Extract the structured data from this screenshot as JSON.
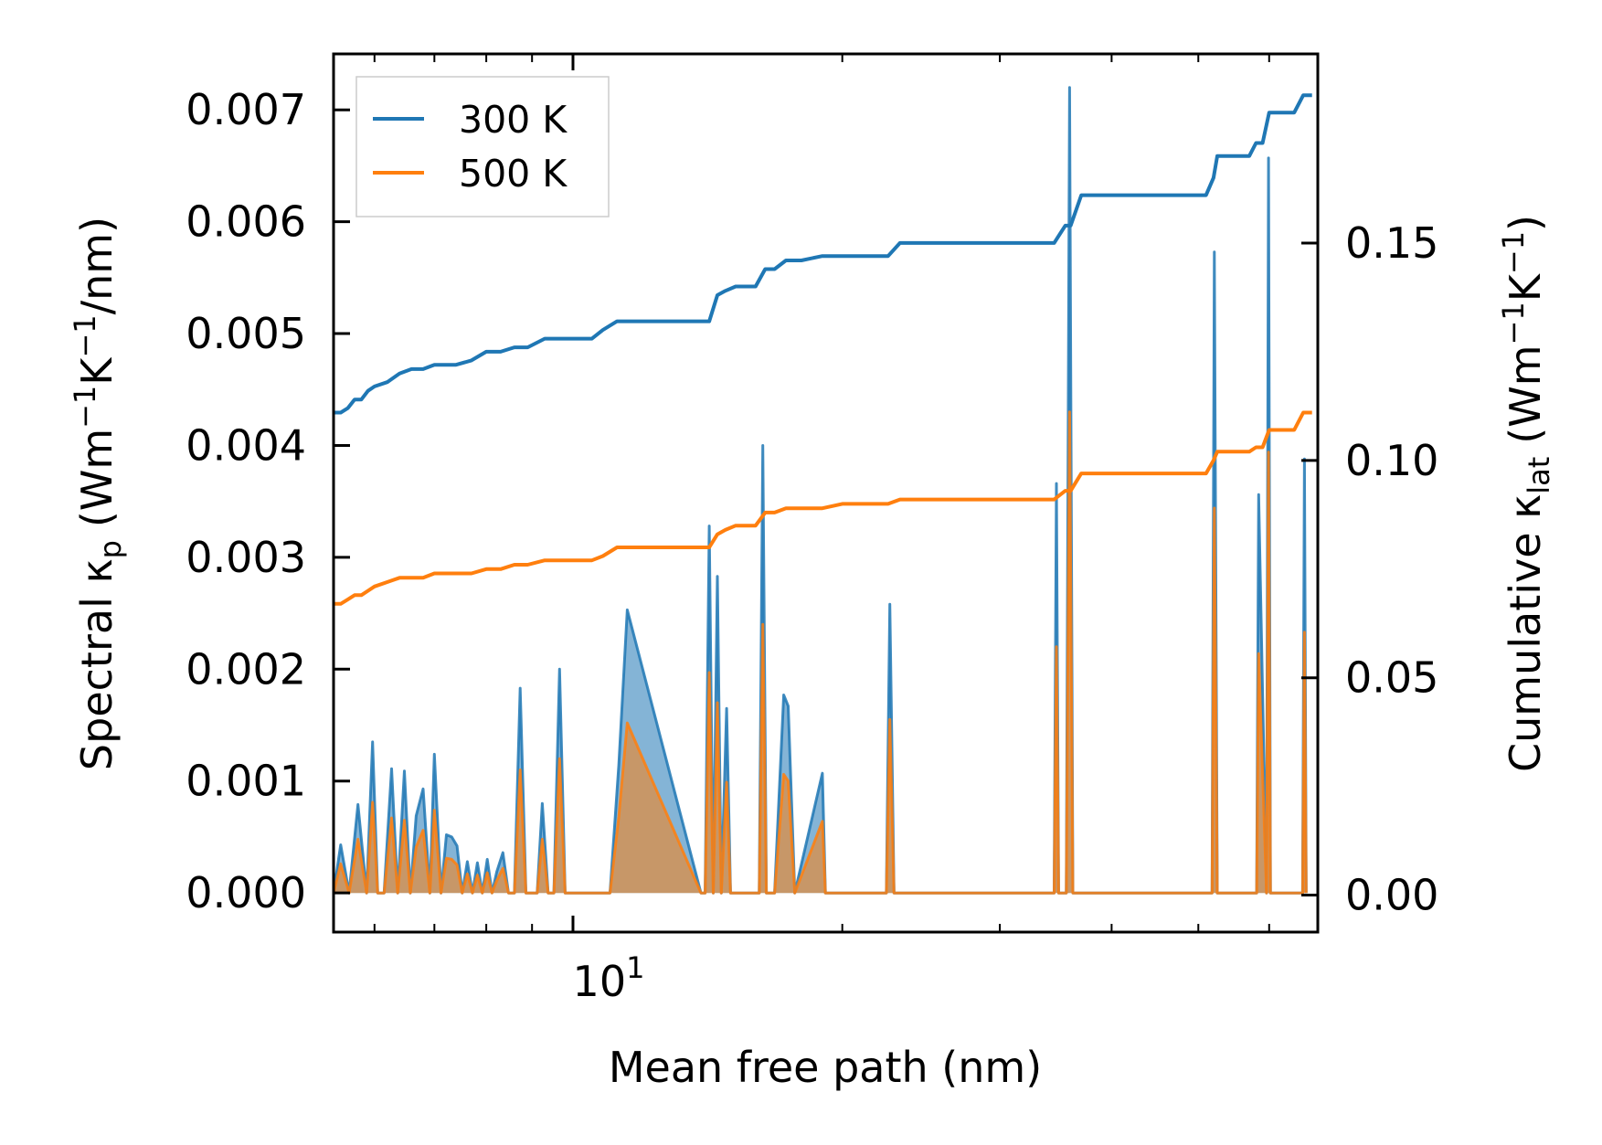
{
  "chart_data": {
    "type": "line",
    "title": "",
    "xlabel": "Mean free path (nm)",
    "xscale": "log",
    "xlim": [
      5.4,
      68
    ],
    "x_major_tick_label": {
      "base": "10",
      "exp": "1",
      "value": 10
    },
    "ylabel_left": {
      "main": "Spectral κ",
      "sub": "p",
      "unit": "(Wm",
      "sup1": "−1",
      "mid": "K",
      "sup2": "−1",
      "end": "/nm)"
    },
    "ylabel_right": {
      "main": "Cumulative κ",
      "sub": "lat",
      "unit": "(Wm",
      "sup1": "−1",
      "mid": "K",
      "sup2": "−1",
      "end": ")"
    },
    "ylim_left": [
      -0.00035,
      0.0075
    ],
    "ylim_right": [
      -0.0085,
      0.1935
    ],
    "yticks_left": [
      "0.000",
      "0.001",
      "0.002",
      "0.003",
      "0.004",
      "0.005",
      "0.006",
      "0.007"
    ],
    "yticks_left_values": [
      0,
      0.001,
      0.002,
      0.003,
      0.004,
      0.005,
      0.006,
      0.007
    ],
    "yticks_right": [
      "0.00",
      "0.05",
      "0.10",
      "0.15"
    ],
    "yticks_right_values": [
      0,
      0.05,
      0.1,
      0.15
    ],
    "legend": {
      "placement": "top-left",
      "entries": [
        {
          "label": "300 K",
          "color": "#1f77b4"
        },
        {
          "label": "500 K",
          "color": "#ff7f0e"
        }
      ]
    },
    "series": [
      {
        "name": "300 K",
        "axis": "right",
        "color": "#1f77b4",
        "x": [
          5.4,
          5.5,
          5.6,
          5.7,
          5.8,
          5.9,
          6.0,
          6.2,
          6.4,
          6.6,
          6.8,
          7.0,
          7.2,
          7.4,
          7.7,
          8.0,
          8.3,
          8.6,
          8.9,
          9.3,
          9.7,
          10.0,
          10.5,
          10.8,
          11.2,
          11.5,
          12.0,
          13.0,
          14.2,
          14.5,
          14.8,
          15.2,
          16.0,
          16.4,
          16.8,
          17.3,
          18.0,
          19.0,
          20.0,
          21.0,
          22.5,
          23.2,
          25.0,
          30.0,
          34.5,
          35.5,
          36.0,
          37.0,
          40.0,
          44.0,
          51.0,
          52.0,
          52.5,
          53.5,
          57.0,
          58.0,
          59.0,
          60.0,
          60.5,
          62.0,
          64.0,
          65.5,
          66.0,
          67.0
        ],
        "values": [
          0.111,
          0.111,
          0.112,
          0.114,
          0.114,
          0.116,
          0.117,
          0.118,
          0.12,
          0.121,
          0.121,
          0.122,
          0.122,
          0.122,
          0.123,
          0.125,
          0.125,
          0.126,
          0.126,
          0.128,
          0.128,
          0.128,
          0.128,
          0.13,
          0.132,
          0.132,
          0.132,
          0.132,
          0.132,
          0.138,
          0.139,
          0.14,
          0.14,
          0.144,
          0.144,
          0.146,
          0.146,
          0.147,
          0.147,
          0.147,
          0.147,
          0.15,
          0.15,
          0.15,
          0.15,
          0.154,
          0.154,
          0.161,
          0.161,
          0.161,
          0.161,
          0.165,
          0.17,
          0.17,
          0.17,
          0.173,
          0.173,
          0.18,
          0.18,
          0.18,
          0.18,
          0.184,
          0.184,
          0.184
        ]
      },
      {
        "name": "500 K",
        "axis": "right",
        "color": "#ff7f0e",
        "x": [
          5.4,
          5.5,
          5.6,
          5.7,
          5.8,
          5.9,
          6.0,
          6.2,
          6.4,
          6.6,
          6.8,
          7.0,
          7.2,
          7.4,
          7.7,
          8.0,
          8.3,
          8.6,
          8.9,
          9.3,
          9.7,
          10.0,
          10.5,
          10.8,
          11.2,
          11.5,
          12.0,
          13.0,
          14.2,
          14.5,
          14.8,
          15.2,
          16.0,
          16.4,
          16.8,
          17.3,
          18.0,
          19.0,
          20.0,
          21.0,
          22.5,
          23.2,
          25.0,
          30.0,
          34.5,
          35.5,
          36.0,
          37.0,
          40.0,
          44.0,
          51.0,
          52.0,
          52.5,
          53.5,
          57.0,
          58.0,
          59.0,
          60.0,
          60.5,
          62.0,
          64.0,
          65.5,
          66.0,
          67.0
        ],
        "values": [
          0.067,
          0.067,
          0.068,
          0.069,
          0.069,
          0.07,
          0.071,
          0.072,
          0.073,
          0.073,
          0.073,
          0.074,
          0.074,
          0.074,
          0.074,
          0.075,
          0.075,
          0.076,
          0.076,
          0.077,
          0.077,
          0.077,
          0.077,
          0.078,
          0.08,
          0.08,
          0.08,
          0.08,
          0.08,
          0.083,
          0.084,
          0.085,
          0.085,
          0.088,
          0.088,
          0.089,
          0.089,
          0.089,
          0.09,
          0.09,
          0.09,
          0.091,
          0.091,
          0.091,
          0.091,
          0.093,
          0.093,
          0.097,
          0.097,
          0.097,
          0.097,
          0.1,
          0.102,
          0.102,
          0.102,
          0.103,
          0.103,
          0.107,
          0.107,
          0.107,
          0.107,
          0.111,
          0.111,
          0.111
        ]
      }
    ],
    "spectral_series": [
      {
        "name": "300 K spectral",
        "axis": "left",
        "color": "#1f77b4",
        "x": [
          5.4,
          5.5,
          5.62,
          5.75,
          5.88,
          5.97,
          6.05,
          6.15,
          6.27,
          6.37,
          6.48,
          6.58,
          6.68,
          6.8,
          6.92,
          7.0,
          7.12,
          7.22,
          7.32,
          7.42,
          7.52,
          7.62,
          7.72,
          7.82,
          7.92,
          8.02,
          8.12,
          8.22,
          8.35,
          8.47,
          8.6,
          8.73,
          8.86,
          8.98,
          9.12,
          9.24,
          9.38,
          9.52,
          9.66,
          9.8,
          9.92,
          10.06,
          10.5,
          11.0,
          11.25,
          11.5,
          13.9,
          14.05,
          14.2,
          14.35,
          14.5,
          14.65,
          14.85,
          15.0,
          15.2,
          16.0,
          16.15,
          16.3,
          16.45,
          16.8,
          17.2,
          17.4,
          17.7,
          19.0,
          19.15,
          19.3,
          22.4,
          22.6,
          22.85,
          34.5,
          34.7,
          34.9,
          35.6,
          35.9,
          36.2,
          36.5,
          36.8,
          51.5,
          51.8,
          52.1,
          52.5,
          52.8,
          57.8,
          58.1,
          58.4,
          59.6,
          59.9,
          60.2,
          60.6,
          65.4,
          65.7,
          66.0
        ],
        "values": [
          0.0,
          0.00043,
          0.0,
          0.00079,
          0.0,
          0.00135,
          0.0,
          0.0,
          0.00111,
          0.0,
          0.00109,
          0.0,
          0.00069,
          0.00093,
          0.0,
          0.00124,
          0.0,
          0.00052,
          0.0005,
          0.00042,
          0.0,
          0.00028,
          0.0,
          0.00027,
          0.0,
          0.0003,
          0.0,
          0.00019,
          0.00036,
          0.0,
          0.0,
          0.00183,
          0.0,
          0.0,
          0.0,
          0.0008,
          0.0,
          0.0,
          0.002,
          0.0,
          0.0,
          0.0,
          0.0,
          0.0,
          0.00114,
          0.00253,
          0.0,
          0.0,
          0.00328,
          0.0,
          0.00283,
          0.0,
          0.00165,
          0.0,
          0.0,
          0.0,
          0.0,
          0.004,
          0.0,
          0.0,
          0.00177,
          0.00167,
          0.0,
          0.00107,
          0.0,
          0.0,
          0.0,
          0.00258,
          0.0,
          0.0,
          0.00366,
          0.0,
          0.0,
          0.0072,
          0.0,
          0.0,
          0.0,
          0.0,
          0.0,
          0.00573,
          0.0,
          0.0,
          0.0,
          0.0,
          0.00356,
          0.0,
          0.00657,
          0.0,
          0.0,
          0.0,
          0.00388,
          0.0
        ]
      },
      {
        "name": "500 K spectral",
        "axis": "left",
        "color": "#ff7f0e",
        "x": [
          5.4,
          5.5,
          5.62,
          5.75,
          5.88,
          5.97,
          6.05,
          6.15,
          6.27,
          6.37,
          6.48,
          6.58,
          6.68,
          6.8,
          6.92,
          7.0,
          7.12,
          7.22,
          7.32,
          7.42,
          7.52,
          7.62,
          7.72,
          7.82,
          7.92,
          8.02,
          8.12,
          8.22,
          8.35,
          8.47,
          8.6,
          8.73,
          8.86,
          8.98,
          9.12,
          9.24,
          9.38,
          9.52,
          9.66,
          9.8,
          9.92,
          10.06,
          10.5,
          11.0,
          11.25,
          11.5,
          13.9,
          14.05,
          14.2,
          14.35,
          14.5,
          14.65,
          14.85,
          15.0,
          15.2,
          16.0,
          16.15,
          16.3,
          16.45,
          16.8,
          17.2,
          17.4,
          17.7,
          19.0,
          19.15,
          19.3,
          22.4,
          22.6,
          22.85,
          34.5,
          34.7,
          34.9,
          35.6,
          35.9,
          36.2,
          36.5,
          36.8,
          51.5,
          51.8,
          52.1,
          52.5,
          52.8,
          57.8,
          58.1,
          58.4,
          59.6,
          59.9,
          60.2,
          60.6,
          65.4,
          65.7,
          66.0
        ],
        "values": [
          0.0,
          0.00026,
          0.0,
          0.00048,
          0.0,
          0.00081,
          0.0,
          0.0,
          0.00067,
          0.0,
          0.00065,
          0.0,
          0.00041,
          0.00056,
          0.0,
          0.00074,
          0.0,
          0.00031,
          0.0003,
          0.00025,
          0.0,
          0.00017,
          0.0,
          0.00016,
          0.0,
          0.00018,
          0.0,
          0.00011,
          0.00022,
          0.0,
          0.0,
          0.0011,
          0.0,
          0.0,
          0.0,
          0.00048,
          0.0,
          0.0,
          0.0012,
          0.0,
          0.0,
          0.0,
          0.0,
          0.0,
          0.00068,
          0.00152,
          0.0,
          0.0,
          0.00197,
          0.0,
          0.0017,
          0.0,
          0.00099,
          0.0,
          0.0,
          0.0,
          0.0,
          0.0024,
          0.0,
          0.0,
          0.00106,
          0.001,
          0.0,
          0.00064,
          0.0,
          0.0,
          0.0,
          0.00155,
          0.0,
          0.0,
          0.0022,
          0.0,
          0.0,
          0.0043,
          0.0,
          0.0,
          0.0,
          0.0,
          0.0,
          0.00344,
          0.0,
          0.0,
          0.0,
          0.0,
          0.00214,
          0.0,
          0.00394,
          0.0,
          0.0,
          0.0,
          0.00233,
          0.0
        ]
      }
    ]
  }
}
